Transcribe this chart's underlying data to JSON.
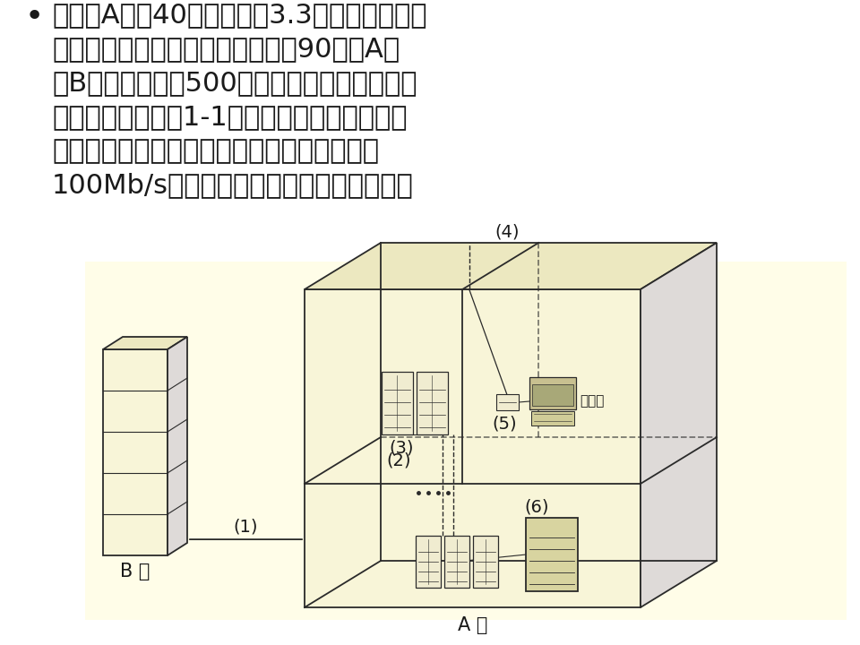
{
  "background_color": "#ffffff",
  "diagram_bg": "#fffff5",
  "text_color": "#1a1a1a",
  "lines": [
    "某公司A楼高40层，每层高3.3米，同一楼层内",
    "任意两个房间最远传输距离不超过90米，A楼",
    "和B楼之间距离为500米，需在整个大楼进行综",
    "合布线，结构如图1-1所示。为满足公司业务发",
    "展的需要，要求为楼内客户机提供数据速率为",
    "100Mb/s的数据、图像、及语音传输服务。"
  ],
  "label_B": "B 楼",
  "label_A": "A 楼",
  "label_1": "(1)",
  "label_2": "(2)",
  "label_3": "(3)",
  "label_4": "(4)",
  "label_5": "(5)",
  "label_6": "(6)",
  "label_kehu": "客户机",
  "line_color": "#2a2a2a",
  "face_front": "#f8f5d8",
  "face_top": "#ece8c0",
  "face_right": "#dedad8",
  "diagram_bg_color": "#fffde8",
  "font_size_text": 22,
  "font_size_label": 14,
  "font_size_building": 15
}
